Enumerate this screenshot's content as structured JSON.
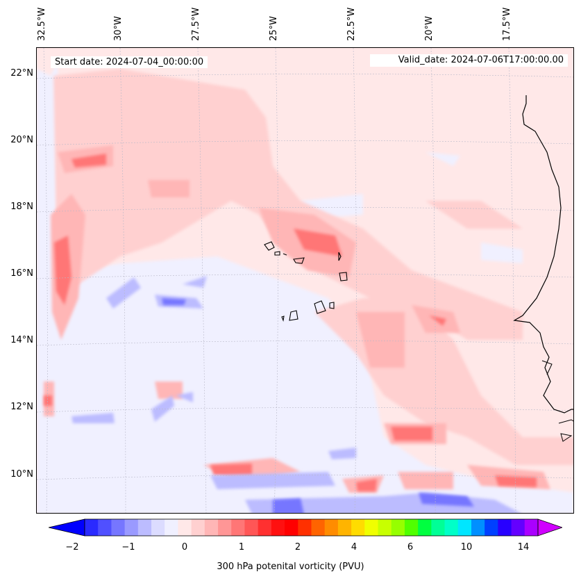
{
  "map": {
    "start_date": "Start date: 2024-07-04_00:00:00",
    "valid_date": "Valid_date: 2024-07-06T17:00:00.00",
    "lon_labels": [
      "32.5°W",
      "30°W",
      "27.5°W",
      "25°W",
      "22.5°W",
      "20°W",
      "17.5°W"
    ],
    "lat_labels": [
      "22°N",
      "20°N",
      "18°N",
      "16°N",
      "14°N",
      "12°N",
      "10°N"
    ]
  },
  "colorbar": {
    "label": "300 hPa potenital vorticity (PVU)",
    "ticks": [
      "−2",
      "−1",
      "0",
      "1",
      "2",
      "4",
      "6",
      "10",
      "14"
    ],
    "colors": [
      "#0000ff",
      "#2a2aff",
      "#5050ff",
      "#7676ff",
      "#9a9aff",
      "#bcbcff",
      "#dcdcff",
      "#f0f0ff",
      "#ffe8e8",
      "#ffd0d0",
      "#ffb6b6",
      "#ff9696",
      "#ff7676",
      "#ff5656",
      "#ff3030",
      "#ff1010",
      "#ff0000",
      "#ff3000",
      "#ff6400",
      "#ff8c00",
      "#ffb400",
      "#ffdc00",
      "#f0ff00",
      "#c8ff00",
      "#96ff00",
      "#50ff00",
      "#00ff40",
      "#00ff96",
      "#00ffc8",
      "#00e6ff",
      "#0090ff",
      "#0040ff",
      "#2800ff",
      "#6400ff",
      "#aa00ff",
      "#d000ff"
    ]
  }
}
